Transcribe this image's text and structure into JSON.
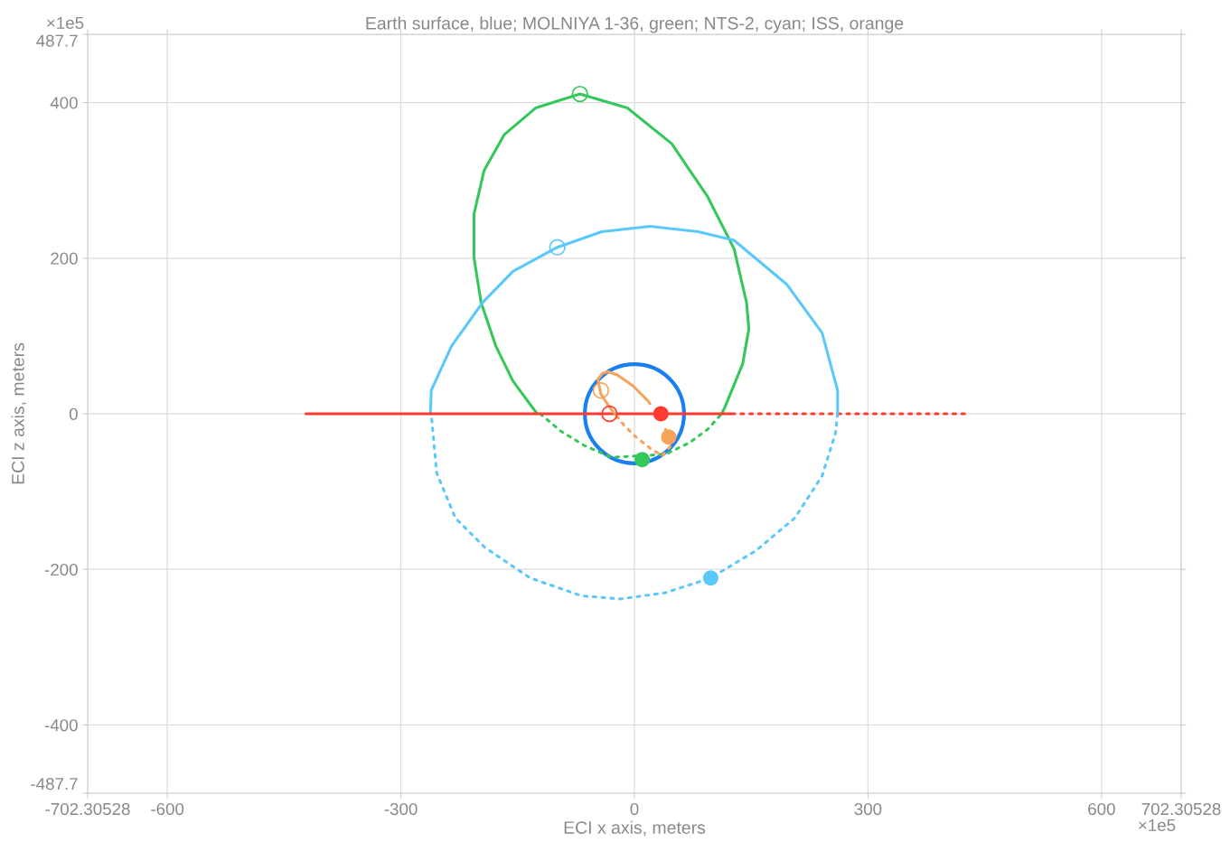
{
  "chart_data": {
    "type": "line",
    "title": "Earth surface, blue; MOLNIYA 1-36, green; NTS-2, cyan; ISS, orange",
    "xlabel": "ECI x axis, meters",
    "ylabel": "ECI z axis, meters",
    "annotations": [
      "×1e5",
      "×1e5"
    ],
    "xlim": [
      -702.30528,
      702.30528
    ],
    "ylim": [
      -487.7,
      487.7
    ],
    "xticks": [
      -702.30528,
      -600,
      -300,
      0,
      300,
      600,
      702.30528
    ],
    "yticks": [
      -487.7,
      -400,
      -200,
      0,
      200,
      400,
      487.7
    ],
    "grid": true,
    "series": [
      {
        "line_style": "dotted",
        "color": "#34c759",
        "x": [
          -121,
          -95,
          -64,
          -29,
          40,
          71,
          94,
          112
        ],
        "values": [
          0,
          -22,
          -41,
          -56,
          -52,
          -37,
          -20,
          0
        ]
      },
      {
        "line_style": "dotted",
        "color": "#5ac8fa",
        "x": [
          261,
          258,
          241,
          206,
          156,
          98,
          40,
          -18,
          -68,
          -134,
          -192,
          -230,
          -254,
          -261
        ],
        "values": [
          0,
          -26,
          -80,
          -134,
          -176,
          -211,
          -230,
          -238,
          -234,
          -211,
          -172,
          -134,
          -76,
          0
        ]
      },
      {
        "line_style": "dotted",
        "color": "#ff3b30",
        "x": [
          424,
          129
        ],
        "values": [
          0,
          0
        ]
      },
      {
        "line_style": "dotted",
        "color": "#f7a35c",
        "x": [
          40,
          46,
          36,
          21,
          1,
          -14,
          -25
        ],
        "values": [
          -20,
          -42,
          -54,
          -45,
          -29,
          -14,
          0
        ]
      },
      {
        "line_style": "solid",
        "color": "#34c759",
        "x": [
          112,
          116,
          139,
          147,
          144,
          128,
          94,
          48,
          -9,
          -70,
          -127,
          -167,
          -193,
          -206,
          -206,
          -197,
          -178,
          -156,
          -125
        ],
        "values": [
          0,
          8,
          64,
          109,
          143,
          212,
          279,
          347,
          393,
          411,
          393,
          359,
          313,
          257,
          200,
          143,
          87,
          42,
          0
        ]
      },
      {
        "line_style": "solid",
        "color": "#5ac8fa",
        "x": [
          -262,
          -261,
          -235,
          -195,
          -156,
          -99,
          -42,
          20,
          82,
          128,
          196,
          241,
          261,
          261
        ],
        "values": [
          0,
          30,
          87,
          143,
          183,
          214,
          234,
          241,
          234,
          223,
          166,
          104,
          30,
          0
        ]
      },
      {
        "line_style": "solid",
        "color": "#ff3b30",
        "x": [
          -422,
          129
        ],
        "values": [
          0,
          0
        ]
      },
      {
        "line_style": "solid",
        "color": "#f7a35c",
        "x": [
          -25,
          -31,
          -43,
          -47,
          -41,
          -34,
          -22,
          -2,
          17,
          20
        ],
        "values": [
          0,
          7,
          25,
          44,
          52,
          54,
          50,
          36,
          17,
          13
        ]
      },
      {
        "marker": "circle",
        "color": "#34c759",
        "x": [
          -70
        ],
        "values": [
          411
        ]
      },
      {
        "marker": "circle",
        "color": "#5ac8fa",
        "x": [
          -99
        ],
        "values": [
          214
        ]
      },
      {
        "marker": "circle",
        "color": "#ff3b30",
        "x": [
          -32
        ],
        "values": [
          0
        ]
      },
      {
        "marker": "circle",
        "color": "#f7a35c",
        "x": [
          -43
        ],
        "values": [
          30
        ]
      },
      {
        "type": "scatter",
        "marker": "circle",
        "color": "#ff3b30",
        "x": [
          34
        ],
        "values": [
          0
        ]
      },
      {
        "type": "scatter",
        "marker": "circle",
        "color": "#f7a35c",
        "x": [
          44
        ],
        "values": [
          -30
        ]
      },
      {
        "type": "scatter",
        "marker": "circle",
        "color": "#34c759",
        "x": [
          10
        ],
        "values": [
          -59
        ]
      },
      {
        "type": "scatter",
        "marker": "circle",
        "color": "#5ac8fa",
        "x": [
          98
        ],
        "values": [
          -211
        ]
      }
    ]
  }
}
